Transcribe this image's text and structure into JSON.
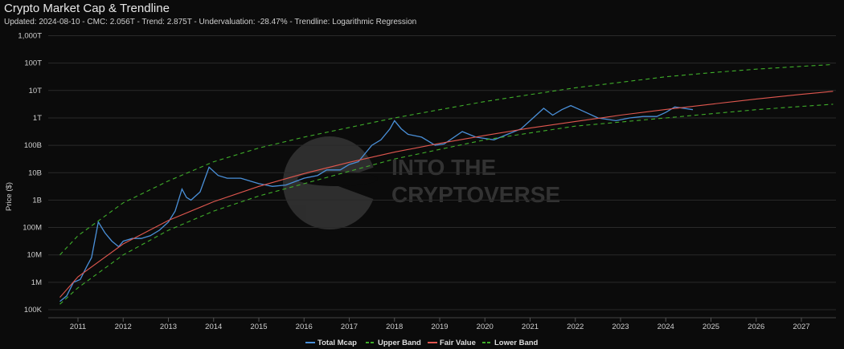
{
  "chart_data": {
    "type": "line",
    "title": "Crypto Market Cap & Trendline",
    "subtitle": "Updated: 2024-08-10 - CMC: 2.056T - Trend: 2.875T - Undervaluation: -28.47% - Trendline: Logarithmic Regression",
    "xlabel": "",
    "ylabel": "Price ($)",
    "yscale": "log10",
    "ylim_log10": [
      5,
      15
    ],
    "xlim": [
      2010.4,
      2027.8
    ],
    "grid": true,
    "legend_position": "bottom-center",
    "y_ticks": [
      {
        "log10": 5,
        "label": "100K"
      },
      {
        "log10": 6,
        "label": "1M"
      },
      {
        "log10": 7,
        "label": "10M"
      },
      {
        "log10": 8,
        "label": "100M"
      },
      {
        "log10": 9,
        "label": "1B"
      },
      {
        "log10": 10,
        "label": "10B"
      },
      {
        "log10": 11,
        "label": "100B"
      },
      {
        "log10": 12,
        "label": "1T"
      },
      {
        "log10": 13,
        "label": "10T"
      },
      {
        "log10": 14,
        "label": "100T"
      },
      {
        "log10": 15,
        "label": "1,000T"
      }
    ],
    "x_ticks": [
      "2011",
      "2012",
      "2013",
      "2014",
      "2015",
      "2016",
      "2017",
      "2018",
      "2019",
      "2020",
      "2021",
      "2022",
      "2023",
      "2024",
      "2025",
      "2026",
      "2027"
    ],
    "series": [
      {
        "name": "Total Mcap",
        "color": "#4a90d9",
        "dash": "none",
        "points": [
          [
            2010.6,
            5.3
          ],
          [
            2010.75,
            5.5
          ],
          [
            2010.9,
            6.0
          ],
          [
            2011.05,
            6.1
          ],
          [
            2011.2,
            6.6
          ],
          [
            2011.3,
            6.9
          ],
          [
            2011.45,
            8.2
          ],
          [
            2011.6,
            7.8
          ],
          [
            2011.75,
            7.5
          ],
          [
            2011.9,
            7.3
          ],
          [
            2012.0,
            7.5
          ],
          [
            2012.2,
            7.6
          ],
          [
            2012.4,
            7.6
          ],
          [
            2012.6,
            7.7
          ],
          [
            2012.8,
            7.9
          ],
          [
            2013.0,
            8.2
          ],
          [
            2013.15,
            8.6
          ],
          [
            2013.3,
            9.4
          ],
          [
            2013.4,
            9.1
          ],
          [
            2013.5,
            9.0
          ],
          [
            2013.7,
            9.3
          ],
          [
            2013.9,
            10.2
          ],
          [
            2014.1,
            9.9
          ],
          [
            2014.3,
            9.8
          ],
          [
            2014.6,
            9.8
          ],
          [
            2015.0,
            9.6
          ],
          [
            2015.3,
            9.5
          ],
          [
            2015.6,
            9.55
          ],
          [
            2016.0,
            9.8
          ],
          [
            2016.3,
            9.9
          ],
          [
            2016.5,
            10.1
          ],
          [
            2016.8,
            10.1
          ],
          [
            2017.0,
            10.3
          ],
          [
            2017.2,
            10.4
          ],
          [
            2017.5,
            11.0
          ],
          [
            2017.7,
            11.2
          ],
          [
            2017.9,
            11.6
          ],
          [
            2018.0,
            11.9
          ],
          [
            2018.15,
            11.6
          ],
          [
            2018.3,
            11.4
          ],
          [
            2018.6,
            11.3
          ],
          [
            2018.9,
            11.0
          ],
          [
            2019.1,
            11.05
          ],
          [
            2019.5,
            11.5
          ],
          [
            2019.8,
            11.3
          ],
          [
            2020.2,
            11.2
          ],
          [
            2020.5,
            11.4
          ],
          [
            2020.8,
            11.6
          ],
          [
            2021.0,
            11.9
          ],
          [
            2021.2,
            12.2
          ],
          [
            2021.3,
            12.35
          ],
          [
            2021.5,
            12.1
          ],
          [
            2021.7,
            12.3
          ],
          [
            2021.9,
            12.45
          ],
          [
            2022.1,
            12.3
          ],
          [
            2022.3,
            12.15
          ],
          [
            2022.5,
            12.0
          ],
          [
            2022.9,
            11.9
          ],
          [
            2023.2,
            12.0
          ],
          [
            2023.5,
            12.05
          ],
          [
            2023.8,
            12.05
          ],
          [
            2024.0,
            12.2
          ],
          [
            2024.2,
            12.4
          ],
          [
            2024.4,
            12.35
          ],
          [
            2024.6,
            12.3
          ]
        ]
      },
      {
        "name": "Upper Band",
        "color": "#3fae2a",
        "dash": "5,4",
        "points": [
          [
            2010.6,
            7.0
          ],
          [
            2011.0,
            7.7
          ],
          [
            2011.5,
            8.3
          ],
          [
            2012.0,
            8.9
          ],
          [
            2013.0,
            9.7
          ],
          [
            2014.0,
            10.4
          ],
          [
            2015.0,
            10.9
          ],
          [
            2016.0,
            11.3
          ],
          [
            2017.0,
            11.65
          ],
          [
            2018.0,
            12.0
          ],
          [
            2019.0,
            12.3
          ],
          [
            2020.0,
            12.6
          ],
          [
            2021.0,
            12.85
          ],
          [
            2022.0,
            13.1
          ],
          [
            2023.0,
            13.3
          ],
          [
            2024.0,
            13.5
          ],
          [
            2025.0,
            13.65
          ],
          [
            2026.0,
            13.78
          ],
          [
            2027.0,
            13.88
          ],
          [
            2027.7,
            13.95
          ]
        ]
      },
      {
        "name": "Fair Value",
        "color": "#e0574f",
        "dash": "none",
        "points": [
          [
            2010.6,
            5.45
          ],
          [
            2011.0,
            6.2
          ],
          [
            2012.0,
            7.4
          ],
          [
            2013.0,
            8.26
          ],
          [
            2014.0,
            8.94
          ],
          [
            2015.0,
            9.5
          ],
          [
            2016.0,
            9.97
          ],
          [
            2017.0,
            10.38
          ],
          [
            2018.0,
            10.75
          ],
          [
            2019.0,
            11.07
          ],
          [
            2020.0,
            11.36
          ],
          [
            2021.0,
            11.63
          ],
          [
            2022.0,
            11.87
          ],
          [
            2023.0,
            12.1
          ],
          [
            2024.0,
            12.31
          ],
          [
            2025.0,
            12.5
          ],
          [
            2026.0,
            12.69
          ],
          [
            2027.0,
            12.86
          ],
          [
            2027.7,
            12.97
          ]
        ]
      },
      {
        "name": "Lower Band",
        "color": "#3fae2a",
        "dash": "5,4",
        "points": [
          [
            2010.6,
            5.2
          ],
          [
            2011.0,
            5.8
          ],
          [
            2012.0,
            7.0
          ],
          [
            2013.0,
            7.9
          ],
          [
            2014.0,
            8.6
          ],
          [
            2015.0,
            9.15
          ],
          [
            2016.0,
            9.6
          ],
          [
            2017.0,
            10.05
          ],
          [
            2018.0,
            10.5
          ],
          [
            2019.0,
            10.85
          ],
          [
            2020.0,
            11.2
          ],
          [
            2021.0,
            11.45
          ],
          [
            2022.0,
            11.7
          ],
          [
            2023.0,
            11.85
          ],
          [
            2024.0,
            12.0
          ],
          [
            2025.0,
            12.15
          ],
          [
            2026.0,
            12.3
          ],
          [
            2027.0,
            12.42
          ],
          [
            2027.7,
            12.5
          ]
        ]
      }
    ],
    "watermark": {
      "line1": "INTO THE",
      "line2": "CRYPTOVERSE"
    }
  }
}
